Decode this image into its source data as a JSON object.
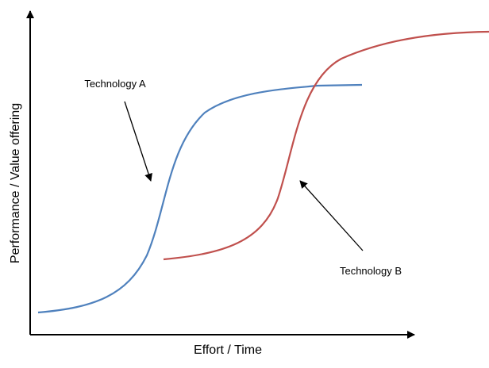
{
  "x_axis_label": "Effort / Time",
  "y_axis_label": "Performance / Value offering",
  "annotations": [
    "Technology A",
    "Technology B"
  ]
}
